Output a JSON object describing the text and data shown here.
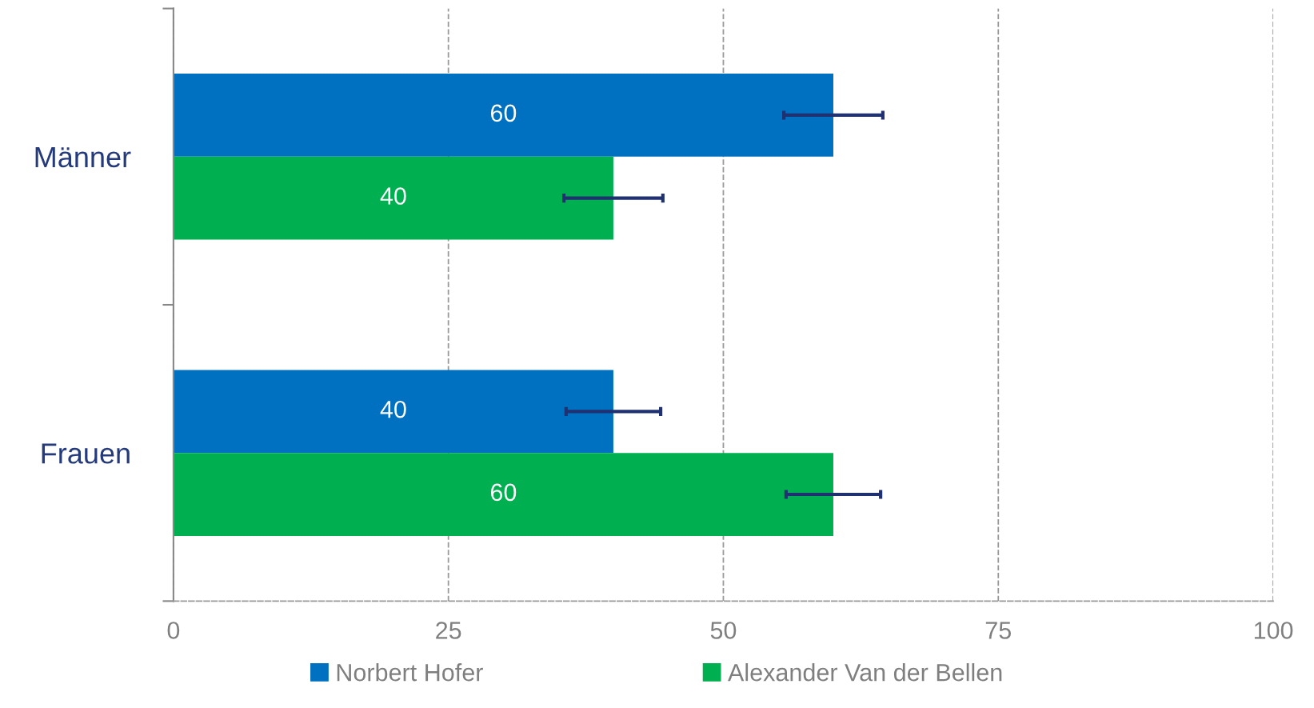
{
  "chart_data": {
    "type": "bar",
    "orientation": "horizontal",
    "categories": [
      "Männer",
      "Frauen"
    ],
    "series": [
      {
        "name": "Norbert Hofer",
        "color": "#0070c0",
        "values": [
          60,
          40
        ],
        "errors": [
          4.5,
          4.3
        ]
      },
      {
        "name": "Alexander Van der Bellen",
        "color": "#00b050",
        "values": [
          40,
          60
        ],
        "errors": [
          4.5,
          4.3
        ]
      }
    ],
    "xlim": [
      0,
      100
    ],
    "xticks": [
      0,
      25,
      50,
      75,
      100
    ],
    "grid": "x",
    "legend": "bottom",
    "data_labels": true
  }
}
